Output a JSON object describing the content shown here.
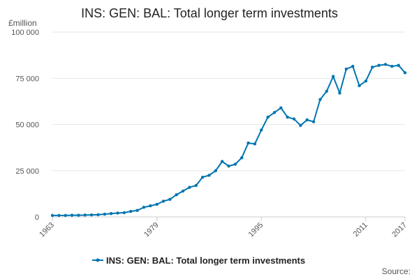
{
  "chart_data": {
    "type": "line",
    "title": "INS: GEN: BAL: Total longer term investments",
    "ylabel": "£million",
    "xlabel": "",
    "xlim": [
      1963,
      2017
    ],
    "ylim": [
      0,
      100000
    ],
    "grid": true,
    "legend_position": "bottom",
    "y_ticks": [
      0,
      25000,
      50000,
      75000,
      100000
    ],
    "y_tick_labels": [
      "0",
      "25 000",
      "50 000",
      "75 000",
      "100 000"
    ],
    "x_ticks": [
      1963,
      1979,
      1995,
      2011,
      2017
    ],
    "x_tick_labels": [
      "1963",
      "1979",
      "1995",
      "2011",
      "2017"
    ],
    "series": [
      {
        "name": "INS: GEN: BAL: Total longer term investments",
        "color": "#0075b0",
        "x": [
          1963,
          1964,
          1965,
          1966,
          1967,
          1968,
          1969,
          1970,
          1971,
          1972,
          1973,
          1974,
          1975,
          1976,
          1977,
          1978,
          1979,
          1980,
          1981,
          1982,
          1983,
          1984,
          1985,
          1986,
          1987,
          1988,
          1989,
          1990,
          1991,
          1992,
          1993,
          1994,
          1995,
          1996,
          1997,
          1998,
          1999,
          2000,
          2001,
          2002,
          2003,
          2004,
          2005,
          2006,
          2007,
          2008,
          2009,
          2010,
          2011,
          2012,
          2013,
          2014,
          2015,
          2016,
          2017
        ],
        "values": [
          800,
          800,
          800,
          900,
          900,
          1000,
          1100,
          1200,
          1500,
          1800,
          2100,
          2300,
          3000,
          3500,
          5200,
          6000,
          6800,
          8500,
          9500,
          12000,
          14000,
          16000,
          17000,
          21500,
          22500,
          25000,
          30000,
          27500,
          28500,
          32000,
          40000,
          39500,
          47000,
          54000,
          56500,
          59000,
          54000,
          53000,
          49500,
          52500,
          51500,
          63500,
          68000,
          76000,
          67000,
          80000,
          81500,
          71000,
          73500,
          81000,
          82000,
          82500,
          81500,
          82000,
          78000
        ]
      }
    ]
  },
  "source_label": "Source:"
}
